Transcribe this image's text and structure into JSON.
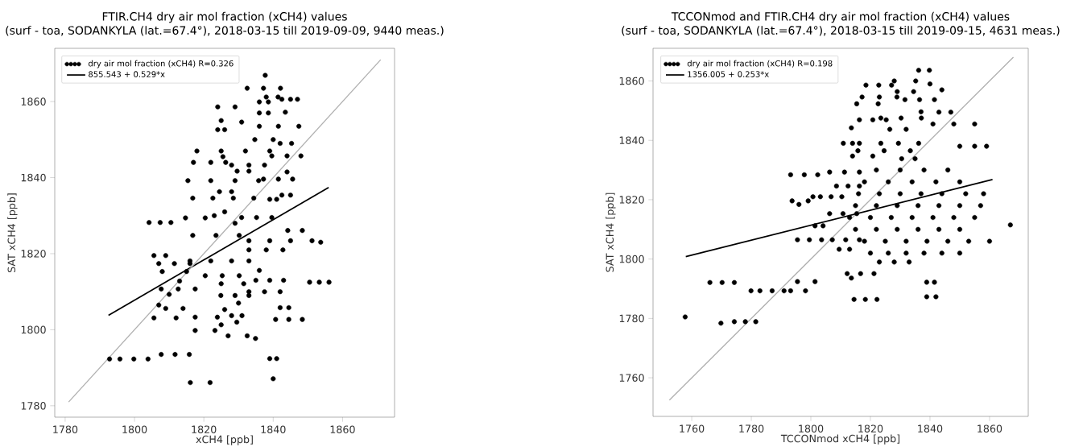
{
  "chart_data": [
    {
      "type": "scatter",
      "title": "FTIR.CH4  dry air mol fraction (xCH4) values",
      "subtitle": "(surf - toa, SODANKYLA (lat.=67.4°), 2018-03-15 till 2019-09-09, 9440 meas.)",
      "xlabel": "xCH4 [ppb]",
      "ylabel": "SAT xCH4 [ppb]",
      "xlim": [
        1777,
        1875
      ],
      "ylim": [
        1777,
        1874
      ],
      "xticks": [
        1780,
        1800,
        1820,
        1840,
        1860
      ],
      "yticks": [
        1780,
        1800,
        1820,
        1840,
        1860
      ],
      "legend": "top left",
      "series": [
        {
          "name": "dry air mol fraction (xCH4) R=0.326",
          "color": "#000000",
          "marker": "circle",
          "x": [
            1837.7,
            1832.5,
            1837.2,
            1842.1,
            1838,
            1841.4,
            1836,
            1838.6,
            1842.5,
            1845,
            1847,
            1824,
            1829,
            1825,
            1830.9,
            1836,
            1838.6,
            1843.5,
            1824,
            1826,
            1836,
            1841.5,
            1847.4,
            1834.7,
            1840,
            1842,
            1845.3,
            1818,
            1825,
            1832,
            1839,
            1825.5,
            1839.6,
            1844,
            1848,
            1817,
            1822,
            1826.3,
            1828,
            1833,
            1837.5,
            1844,
            1829.6,
            1833,
            1815.4,
            1822,
            1829,
            1835.8,
            1837.2,
            1841.5,
            1845.6,
            1816.8,
            1822.6,
            1828.5,
            1834.4,
            1824.5,
            1828,
            1839,
            1841,
            1842.5,
            1845,
            1804.2,
            1807.4,
            1810.5,
            1814.7,
            1820.4,
            1823,
            1826,
            1830.9,
            1835.2,
            1839.6,
            1829,
            1844.2,
            1848.4,
            1816.8,
            1823.5,
            1830.2,
            1833,
            1839,
            1845,
            1851.2,
            1853.7,
            1833,
            1838,
            1842.8,
            1805.6,
            1809,
            1807,
            1811.5,
            1816,
            1816,
            1822,
            1828,
            1833,
            1808,
            1815,
            1836,
            1820.4,
            1825.3,
            1830.2,
            1813,
            1825,
            1831.5,
            1835,
            1839,
            1843,
            1850.5,
            1853.3,
            1856.1,
            1807.7,
            1812.6,
            1817.5,
            1833,
            1837.5,
            1842,
            1810,
            1824.9,
            1829,
            1833,
            1807,
            1809,
            1814,
            1826,
            1830,
            1842,
            1844.5,
            1805.6,
            1812,
            1817.5,
            1823.9,
            1828,
            1831,
            1840.7,
            1844.5,
            1848.4,
            1825,
            1829.5,
            1817.5,
            1823.2,
            1827,
            1832.5,
            1834.9,
            1792.8,
            1795.8,
            1799.8,
            1803.9,
            1807.7,
            1811.7,
            1815.8,
            1839,
            1841,
            1840,
            1816.1,
            1821.8
          ],
          "values": [
            1866.9,
            1863.5,
            1863.5,
            1863.5,
            1861.2,
            1861.2,
            1859.9,
            1859.9,
            1860.6,
            1860.6,
            1860.6,
            1858.6,
            1858.6,
            1855,
            1854.6,
            1857,
            1857,
            1857.2,
            1852.6,
            1852.6,
            1853.5,
            1853.5,
            1853.5,
            1850,
            1850,
            1849,
            1849,
            1847,
            1847,
            1847,
            1847,
            1845.5,
            1845.7,
            1845.7,
            1845.7,
            1844,
            1844,
            1844,
            1843.3,
            1843.3,
            1843.3,
            1841.5,
            1841.7,
            1841.7,
            1839.2,
            1839.2,
            1839.2,
            1839.2,
            1839.6,
            1839.6,
            1839.6,
            1834.6,
            1834.6,
            1834.6,
            1834.6,
            1836.3,
            1836.3,
            1834.3,
            1834.3,
            1835.4,
            1835.4,
            1828.2,
            1828.2,
            1828.2,
            1829.4,
            1829.4,
            1830,
            1831,
            1829.5,
            1829.5,
            1829.5,
            1828,
            1826.1,
            1826.1,
            1824.8,
            1824.8,
            1824.8,
            1823.4,
            1823.4,
            1823.4,
            1823.4,
            1823,
            1821,
            1821,
            1821,
            1819.5,
            1819.5,
            1817.4,
            1817.4,
            1817.4,
            1818.1,
            1818.1,
            1818.1,
            1818.1,
            1815.3,
            1815.3,
            1815.6,
            1814.2,
            1814.2,
            1814.2,
            1812.8,
            1812.1,
            1812.1,
            1813,
            1813,
            1813,
            1812.5,
            1812.5,
            1812.5,
            1810.7,
            1810.7,
            1810.7,
            1810,
            1810,
            1810,
            1809.3,
            1809,
            1809,
            1809,
            1806.5,
            1805.6,
            1805.6,
            1805.3,
            1807,
            1805.8,
            1805.8,
            1803.1,
            1803.1,
            1803.3,
            1803.3,
            1803.7,
            1803.7,
            1802.7,
            1802.7,
            1802.7,
            1801.3,
            1802,
            1799.8,
            1799.8,
            1798.4,
            1798.4,
            1797.7,
            1792.3,
            1792.3,
            1792.3,
            1792.3,
            1793.5,
            1793.5,
            1793.5,
            1792.4,
            1792.4,
            1787.1,
            1786.1,
            1786.1
          ]
        },
        {
          "type": "line",
          "name": "855.543 + 0.529*x",
          "color": "#000000",
          "x": [
            1792.5,
            1856
          ],
          "values": [
            1803.8,
            1837.4
          ]
        },
        {
          "type": "line",
          "color": "#b0b0b0",
          "x": [
            1781,
            1871
          ],
          "values": [
            1781,
            1871
          ]
        }
      ]
    },
    {
      "type": "scatter",
      "title": "TCCONmod and FTIR.CH4  dry air mol fraction (xCH4) values",
      "subtitle": "(surf - toa, SODANKYLA (lat.=67.4°), 2018-03-15 till 2019-09-15, 4631 meas.)",
      "xlabel": "TCCONmod xCH4 [ppb]",
      "ylabel": "SAT xCH4 [ppb]",
      "xlim": [
        1747,
        1873
      ],
      "ylim": [
        1747,
        1871
      ],
      "xticks": [
        1760,
        1780,
        1800,
        1820,
        1840,
        1860
      ],
      "yticks": [
        1760,
        1780,
        1800,
        1820,
        1840,
        1860
      ],
      "legend": "top left",
      "series": [
        {
          "name": "dry air mol fraction (xCH4) R=0.198",
          "color": "#000000",
          "marker": "circle",
          "x": [
            1757.8,
            1769.8,
            1774.3,
            1778,
            1781.5,
            1779.9,
            1782.9,
            1787,
            1791,
            1766.1,
            1770.2,
            1774.3,
            1793.2,
            1798.2,
            1795.5,
            1801.4,
            1795.5,
            1799.5,
            1803.6,
            1801.4,
            1804.1,
            1793.2,
            1797.8,
            1802.3,
            1793.7,
            1799.1,
            1796,
            1800.7,
            1803.2,
            1806.8,
            1810.4,
            1806.3,
            1811.3,
            1816.3,
            1808.6,
            1812.5,
            1816.3,
            1806.3,
            1810.8,
            1815.4,
            1807.2,
            1811.7,
            1816.3,
            1809.5,
            1813,
            1812.2,
            1816.7,
            1821.2,
            1814.5,
            1818.3,
            1822.2,
            1813.6,
            1814,
            1820.8,
            1810.9,
            1814,
            1813.6,
            1815.4,
            1822.6,
            1816.3,
            1820.8,
            1825.3,
            1818.5,
            1822.8,
            1827.1,
            1817.2,
            1823,
            1828.9,
            1816.3,
            1823.5,
            1815.8,
            1824.6,
            1833.4,
            1829.4,
            1836.2,
            1823.5,
            1830.3,
            1837.1,
            1828,
            1835.2,
            1829,
            1834.5,
            1836.2,
            1839.8,
            1831.6,
            1836.5,
            1841.5,
            1837,
            1826.5,
            1832,
            1830.5,
            1835,
            1822,
            1830,
            1838,
            1846,
            1818,
            1826,
            1834,
            1842,
            1850,
            1816,
            1823,
            1830,
            1837,
            1844,
            1852,
            1858,
            1815,
            1822,
            1829,
            1836,
            1843,
            1850,
            1857,
            1813,
            1820,
            1827,
            1834,
            1841,
            1848,
            1855,
            1815,
            1822,
            1829,
            1836,
            1843,
            1850,
            1818,
            1825,
            1832,
            1839,
            1846,
            1853,
            1860,
            1820,
            1826,
            1832,
            1838,
            1844,
            1850,
            1823,
            1828,
            1833,
            1841,
            1848,
            1855,
            1850,
            1855,
            1859,
            1843,
            1847,
            1840,
            1844,
            1867,
            1838.9,
            1841.5,
            1838.9,
            1842
          ],
          "values": [
            1780.5,
            1778.4,
            1778.9,
            1778.9,
            1778.9,
            1789.3,
            1789.3,
            1789.3,
            1789.3,
            1792.1,
            1792.1,
            1792.1,
            1789.3,
            1789.3,
            1792.4,
            1792.4,
            1806.5,
            1806.5,
            1806.5,
            1811.2,
            1811.2,
            1828.4,
            1828.4,
            1828.4,
            1819.6,
            1819.6,
            1818.4,
            1821,
            1821,
            1821,
            1821,
            1829.3,
            1829.3,
            1829.3,
            1824.6,
            1824.6,
            1824.6,
            1815.3,
            1815.3,
            1815.3,
            1806.5,
            1806.5,
            1806.5,
            1803.3,
            1803.3,
            1795.1,
            1795.1,
            1795.1,
            1786.4,
            1786.4,
            1786.4,
            1793.6,
            1834.7,
            1834.7,
            1839,
            1839,
            1844.2,
            1852.3,
            1852.3,
            1846.9,
            1846.9,
            1846.9,
            1858.6,
            1858.6,
            1858.6,
            1854.6,
            1854.6,
            1854.6,
            1839,
            1839,
            1836.5,
            1836.5,
            1836.5,
            1839,
            1839,
            1847.5,
            1847.5,
            1847.5,
            1860,
            1860,
            1856.4,
            1856.4,
            1863.6,
            1863.6,
            1853.7,
            1853.7,
            1853.7,
            1849.6,
            1843.7,
            1843.7,
            1833.8,
            1833.8,
            1830,
            1830,
            1830,
            1830,
            1826,
            1826,
            1826,
            1826,
            1826,
            1822,
            1822,
            1822,
            1822,
            1822,
            1822,
            1822,
            1818,
            1818,
            1818,
            1818,
            1818,
            1818,
            1818,
            1814,
            1814,
            1814,
            1814,
            1814,
            1814,
            1814,
            1810,
            1810,
            1810,
            1810,
            1810,
            1810,
            1806,
            1806,
            1806,
            1806,
            1806,
            1806,
            1806,
            1802,
            1802,
            1802,
            1802,
            1802,
            1802,
            1799,
            1799,
            1799,
            1845.5,
            1845.5,
            1845.5,
            1838,
            1838,
            1838,
            1849.5,
            1849.5,
            1859,
            1857,
            1811.5,
            1792.2,
            1792.2,
            1787.3,
            1787.3
          ]
        },
        {
          "type": "line",
          "name": "1356.005 + 0.253*x",
          "color": "#000000",
          "x": [
            1758,
            1861
          ],
          "values": [
            1800.8,
            1826.8
          ]
        },
        {
          "type": "line",
          "color": "#b0b0b0",
          "x": [
            1752.5,
            1868
          ],
          "values": [
            1752.5,
            1868
          ]
        }
      ]
    }
  ]
}
